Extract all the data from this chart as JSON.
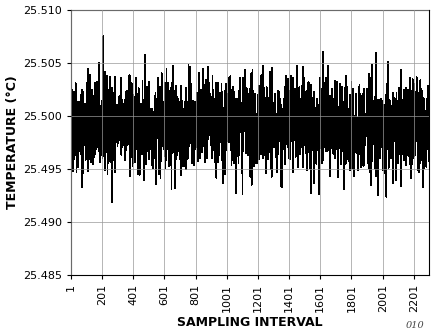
{
  "title": "",
  "xlabel": "SAMPLING INTERVAL",
  "ylabel": "TEMPERATURE (°C)",
  "xlim": [
    1,
    2301
  ],
  "ylim": [
    25.485,
    25.51
  ],
  "yticks": [
    25.485,
    25.49,
    25.495,
    25.5,
    25.505,
    25.51
  ],
  "xticks": [
    1,
    201,
    401,
    601,
    801,
    1001,
    1201,
    1401,
    1601,
    1801,
    2001,
    2201
  ],
  "n_samples": 2301,
  "mean_temp": 25.499,
  "noise_pp": 0.014,
  "noise_std": 0.0022,
  "line_color": "#000000",
  "bg_color": "#ffffff",
  "grid_color": "#999999",
  "watermark": "010",
  "seed": 42,
  "xlabel_fontsize": 9,
  "ylabel_fontsize": 9,
  "tick_fontsize": 8,
  "figsize": [
    4.35,
    3.35
  ],
  "dpi": 100
}
